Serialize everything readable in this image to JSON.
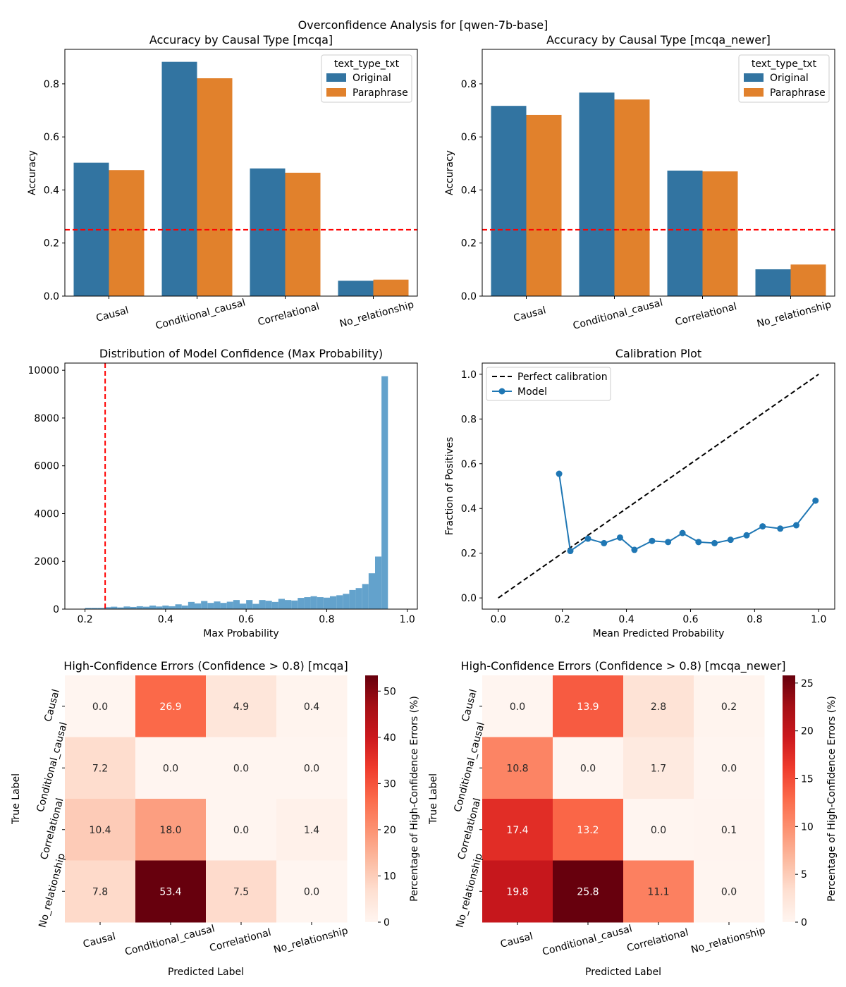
{
  "suptitle": "Overconfidence Analysis for [qwen-7b-base]",
  "colors": {
    "original": "#3274a1",
    "paraphrase": "#e1812c",
    "hist": "#63a2cc",
    "chance": "#ff0000",
    "model": "#1f77b4"
  },
  "chart_data": [
    {
      "type": "bar",
      "title": "Accuracy by Causal Type [mcqa]",
      "ylabel": "Accuracy",
      "xlabel": "",
      "ylim": [
        0,
        0.93
      ],
      "yticks": [
        "0.0",
        "0.2",
        "0.4",
        "0.6",
        "0.8"
      ],
      "categories": [
        "Causal",
        "Conditional_causal",
        "Correlational",
        "No_relationship"
      ],
      "series": [
        {
          "name": "Original",
          "values": [
            0.503,
            0.883,
            0.481,
            0.058
          ]
        },
        {
          "name": "Paraphrase",
          "values": [
            0.475,
            0.821,
            0.465,
            0.062
          ]
        }
      ],
      "legend_title": "text_type_txt",
      "legend_placement": "upper-right",
      "chance_line": 0.25
    },
    {
      "type": "bar",
      "title": "Accuracy by Causal Type [mcqa_newer]",
      "ylabel": "Accuracy",
      "xlabel": "",
      "ylim": [
        0,
        0.93
      ],
      "yticks": [
        "0.0",
        "0.2",
        "0.4",
        "0.6",
        "0.8"
      ],
      "categories": [
        "Causal",
        "Conditional_causal",
        "Correlational",
        "No_relationship"
      ],
      "series": [
        {
          "name": "Original",
          "values": [
            0.717,
            0.767,
            0.473,
            0.101
          ]
        },
        {
          "name": "Paraphrase",
          "values": [
            0.683,
            0.741,
            0.47,
            0.119
          ]
        }
      ],
      "legend_title": "text_type_txt",
      "legend_placement": "upper-right",
      "chance_line": 0.25
    },
    {
      "type": "histogram",
      "title": "Distribution of Model Confidence (Max Probability)",
      "xlabel": "Max Probability",
      "ylabel": "",
      "xlim": [
        0.15,
        1.025
      ],
      "ylim": [
        0,
        10300
      ],
      "xticks": [
        "0.2",
        "0.4",
        "0.6",
        "0.8",
        "1.0"
      ],
      "yticks": [
        "0",
        "2000",
        "4000",
        "6000",
        "8000",
        "10000"
      ],
      "bin_start": 0.2,
      "bin_width": 0.016,
      "counts": [
        50,
        50,
        50,
        80,
        100,
        70,
        110,
        90,
        120,
        100,
        150,
        110,
        150,
        120,
        200,
        150,
        300,
        240,
        340,
        260,
        320,
        260,
        310,
        380,
        230,
        380,
        220,
        380,
        350,
        300,
        430,
        380,
        360,
        470,
        500,
        540,
        500,
        480,
        540,
        580,
        640,
        800,
        880,
        1050,
        1500,
        2200,
        9750
      ],
      "chance_line": 0.25
    },
    {
      "type": "line",
      "title": "Calibration Plot",
      "xlabel": "Mean Predicted Probability",
      "ylabel": "Fraction of Positives",
      "xlim": [
        -0.05,
        1.05
      ],
      "ylim": [
        -0.05,
        1.05
      ],
      "xticks": [
        "0.0",
        "0.2",
        "0.4",
        "0.6",
        "0.8",
        "1.0"
      ],
      "yticks": [
        "0.0",
        "0.2",
        "0.4",
        "0.6",
        "0.8",
        "1.0"
      ],
      "series": [
        {
          "name": "Perfect calibration",
          "x": [
            0,
            1
          ],
          "y": [
            0,
            1
          ]
        },
        {
          "name": "Model",
          "x": [
            0.19,
            0.225,
            0.28,
            0.33,
            0.38,
            0.425,
            0.48,
            0.53,
            0.575,
            0.625,
            0.675,
            0.725,
            0.775,
            0.825,
            0.88,
            0.93,
            0.99
          ],
          "y": [
            0.555,
            0.21,
            0.265,
            0.245,
            0.27,
            0.215,
            0.255,
            0.25,
            0.29,
            0.25,
            0.245,
            0.26,
            0.28,
            0.32,
            0.31,
            0.325,
            0.435
          ]
        }
      ],
      "legend_placement": "upper-left"
    },
    {
      "type": "heatmap",
      "title": "High-Confidence Errors (Confidence > 0.8) [mcqa]",
      "xlabel": "Predicted Label",
      "ylabel": "True Label",
      "colorbar_label": "Percentage of High-Confidence Errors (%)",
      "vmax": 53.4,
      "colorbar_ticks": [
        "0",
        "10",
        "20",
        "30",
        "40",
        "50"
      ],
      "row_labels": [
        "Causal",
        "Conditional_causal",
        "Correlational",
        "No_relationship"
      ],
      "col_labels": [
        "Causal",
        "Conditional_causal",
        "Correlational",
        "No_relationship"
      ],
      "values": [
        [
          0.0,
          26.9,
          4.9,
          0.4
        ],
        [
          7.2,
          0.0,
          0.0,
          0.0
        ],
        [
          10.4,
          18.0,
          0.0,
          1.4
        ],
        [
          7.8,
          53.4,
          7.5,
          0.0
        ]
      ]
    },
    {
      "type": "heatmap",
      "title": "High-Confidence Errors (Confidence > 0.8) [mcqa_newer]",
      "xlabel": "Predicted Label",
      "ylabel": "True Label",
      "colorbar_label": "Percentage of High-Confidence Errors (%)",
      "vmax": 25.8,
      "colorbar_ticks": [
        "0",
        "5",
        "10",
        "15",
        "20",
        "25"
      ],
      "row_labels": [
        "Causal",
        "Conditional_causal",
        "Correlational",
        "No_relationship"
      ],
      "col_labels": [
        "Causal",
        "Conditional_causal",
        "Correlational",
        "No_relationship"
      ],
      "values": [
        [
          0.0,
          13.9,
          2.8,
          0.2
        ],
        [
          10.8,
          0.0,
          1.7,
          0.0
        ],
        [
          17.4,
          13.2,
          0.0,
          0.1
        ],
        [
          19.8,
          25.8,
          11.1,
          0.0
        ]
      ]
    }
  ]
}
